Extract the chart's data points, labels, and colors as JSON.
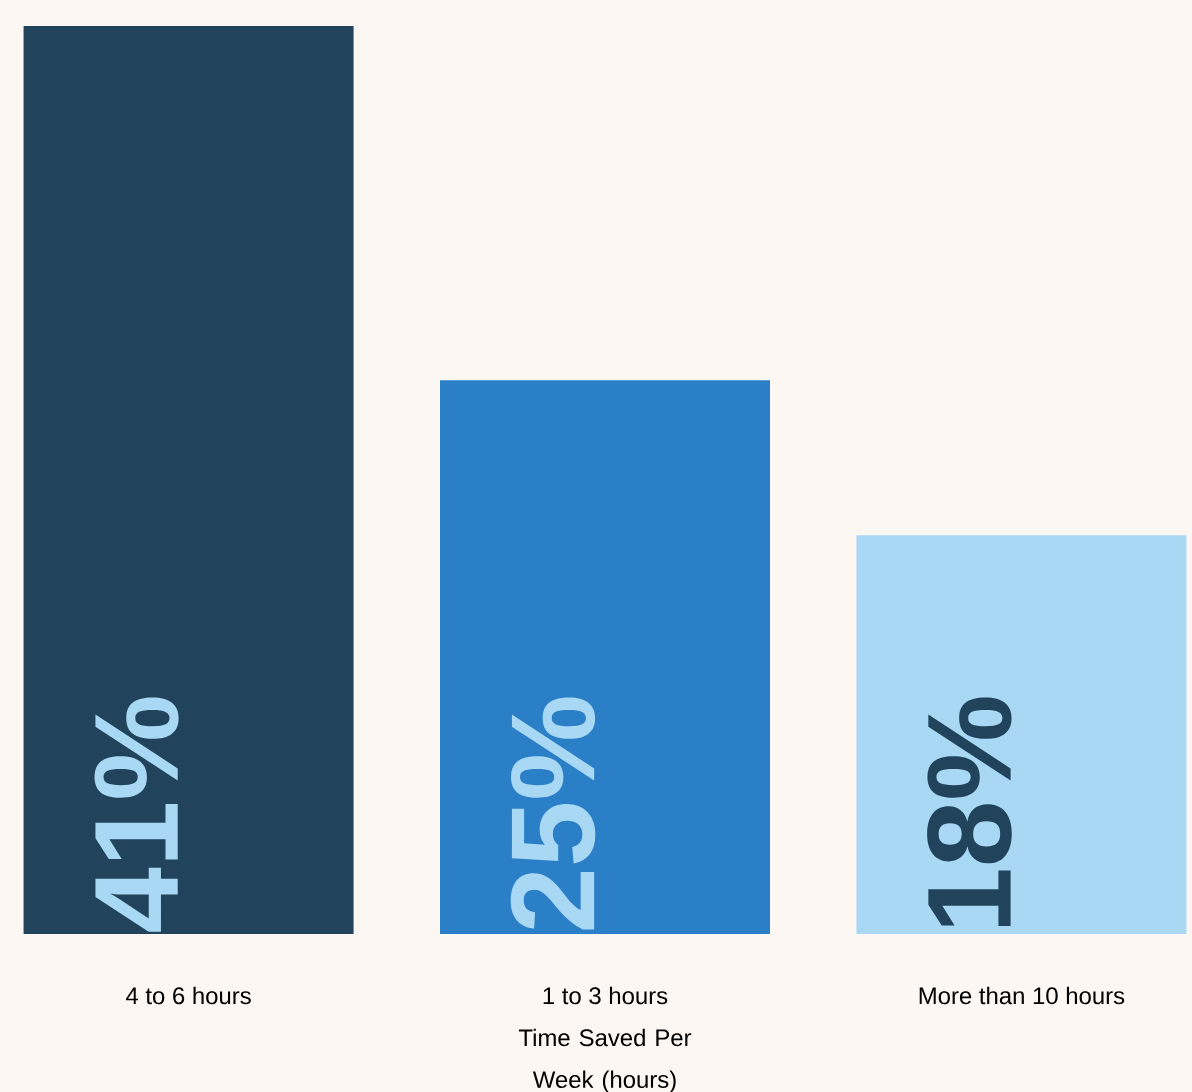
{
  "chart_data": {
    "type": "bar",
    "xlabel": "Time Saved Per Week (hours)",
    "categories": [
      "4 to 6 hours",
      "1 to 3 hours",
      "More than 10 hours"
    ],
    "values": [
      41,
      25,
      18
    ],
    "colors": [
      "#21445c",
      "#2a7fc6",
      "#a9d8f5"
    ],
    "value_labels": [
      "41%",
      "25%",
      "18%"
    ]
  }
}
